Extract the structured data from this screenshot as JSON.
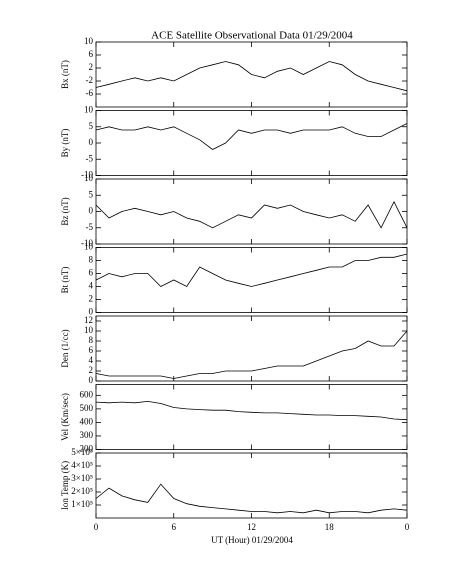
{
  "chart_data": {
    "type": "line",
    "title": "ACE Satellite Observational Data   01/29/2004",
    "xlabel": "UT (Hour)  01/29/2004",
    "x": [
      0,
      1,
      2,
      3,
      4,
      5,
      6,
      7,
      8,
      9,
      10,
      11,
      12,
      13,
      14,
      15,
      16,
      17,
      18,
      19,
      20,
      21,
      22,
      23,
      24
    ],
    "xlim": [
      0,
      24
    ],
    "xticks": [
      0,
      6,
      12,
      18,
      {
        "value": 24,
        "label": "0"
      }
    ],
    "color": "#000000",
    "panels": [
      {
        "ylabel": "Bx (nT)",
        "ylim": [
          -10,
          10
        ],
        "yticks": [
          -6,
          -2,
          2,
          6,
          10
        ],
        "values": [
          -4,
          -3,
          -2,
          -1,
          -2,
          -1,
          -2,
          0,
          2,
          3,
          4,
          3,
          0,
          -1,
          1,
          2,
          0,
          2,
          4,
          3,
          0,
          -2,
          -3,
          -4,
          -5
        ]
      },
      {
        "ylabel": "By (nT)",
        "ylim": [
          -10,
          10
        ],
        "yticks": [
          -10,
          -5,
          0,
          5,
          10
        ],
        "values": [
          4,
          5,
          4,
          4,
          5,
          4,
          5,
          3,
          1,
          -2,
          0,
          4,
          3,
          4,
          4,
          3,
          4,
          4,
          4,
          5,
          3,
          2,
          2,
          4,
          6
        ]
      },
      {
        "ylabel": "Bz (nT)",
        "ylim": [
          -10,
          10
        ],
        "yticks": [
          -10,
          -5,
          0,
          5,
          10
        ],
        "values": [
          2,
          -2,
          0,
          1,
          0,
          -1,
          0,
          -2,
          -3,
          -5,
          -3,
          -1,
          -2,
          2,
          1,
          2,
          0,
          -1,
          -2,
          -1,
          -3,
          2,
          -5,
          3,
          -5
        ]
      },
      {
        "ylabel": "Bt (nT)",
        "ylim": [
          0,
          10
        ],
        "yticks": [
          0,
          2,
          4,
          6,
          8,
          10
        ],
        "values": [
          5,
          6,
          5.5,
          6,
          6,
          4,
          5,
          4,
          7,
          6,
          5,
          4.5,
          4,
          4.5,
          5,
          5.5,
          6,
          6.5,
          7,
          7,
          8,
          8,
          8.5,
          8.5,
          9
        ]
      },
      {
        "ylabel": "Den (1/cc)",
        "ylim": [
          0,
          13
        ],
        "yticks": [
          0,
          2,
          4,
          6,
          8,
          10,
          12
        ],
        "values": [
          1.5,
          1,
          1,
          1,
          1,
          1,
          0.5,
          1,
          1.5,
          1.5,
          2,
          2,
          2,
          2.5,
          3,
          3,
          3,
          4,
          5,
          6,
          6.5,
          8,
          7,
          7,
          10
        ]
      },
      {
        "ylabel": "Vel (Km/sec)",
        "ylim": [
          200,
          680
        ],
        "yticks": [
          200,
          300,
          400,
          500,
          600
        ],
        "values": [
          550,
          545,
          550,
          545,
          555,
          540,
          510,
          500,
          495,
          490,
          490,
          480,
          475,
          470,
          470,
          465,
          460,
          455,
          455,
          450,
          450,
          445,
          440,
          425,
          420
        ]
      },
      {
        "ylabel": "Ion Temp (K)",
        "ylim": [
          0,
          500000
        ],
        "yticks": [
          {
            "value": 100000,
            "label": "1×10⁵"
          },
          {
            "value": 200000,
            "label": "2×10⁵"
          },
          {
            "value": 300000,
            "label": "3×10⁵"
          },
          {
            "value": 400000,
            "label": "4×10⁵"
          },
          {
            "value": 500000,
            "label": "5×10⁵"
          }
        ],
        "values": [
          150000,
          230000,
          170000,
          140000,
          120000,
          260000,
          150000,
          110000,
          90000,
          80000,
          70000,
          60000,
          50000,
          50000,
          40000,
          50000,
          40000,
          60000,
          40000,
          50000,
          50000,
          40000,
          60000,
          70000,
          60000
        ]
      }
    ]
  }
}
